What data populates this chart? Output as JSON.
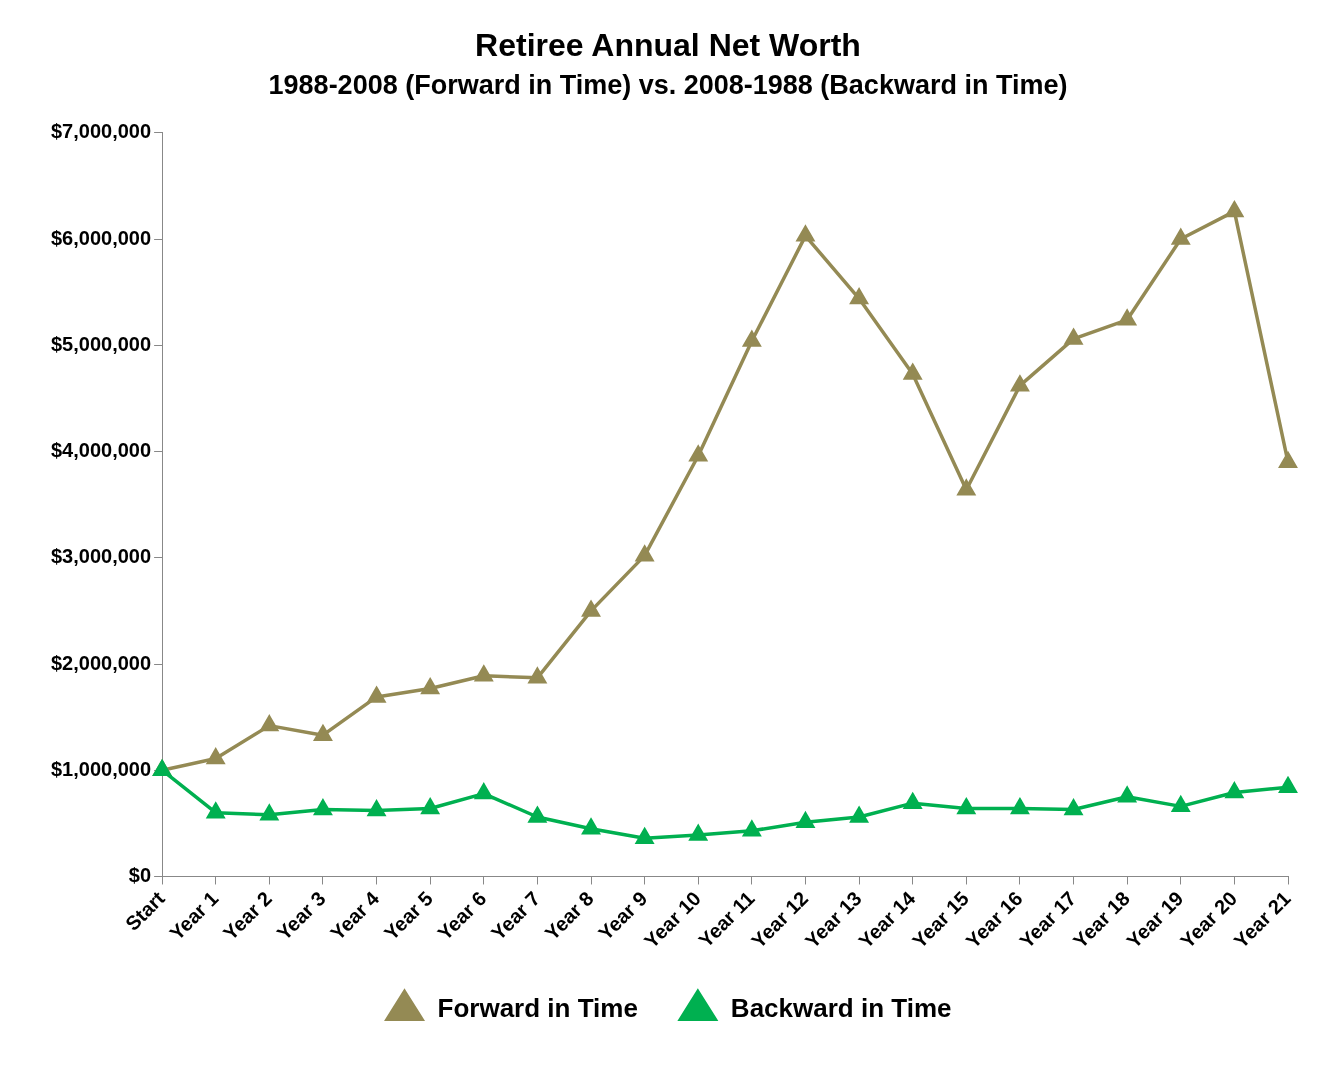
{
  "chart_data": {
    "type": "line",
    "title": "Retiree Annual Net Worth",
    "subtitle": "1988-2008 (Forward in Time) vs. 2008-1988 (Backward in Time)",
    "categories": [
      "Start",
      "Year 1",
      "Year 2",
      "Year 3",
      "Year 4",
      "Year 5",
      "Year 6",
      "Year 7",
      "Year 8",
      "Year 9",
      "Year 10",
      "Year 11",
      "Year 12",
      "Year 13",
      "Year 14",
      "Year 15",
      "Year 16",
      "Year 17",
      "Year 18",
      "Year 19",
      "Year 20",
      "Year 21"
    ],
    "series": [
      {
        "name": "Forward in Time",
        "color": "#948a54",
        "values": [
          1000000,
          1110000,
          1420000,
          1330000,
          1690000,
          1770000,
          1890000,
          1870000,
          2500000,
          3020000,
          3960000,
          5040000,
          6030000,
          5440000,
          4730000,
          3640000,
          4620000,
          5060000,
          5240000,
          6000000,
          6260000,
          3900000
        ]
      },
      {
        "name": "Backward in Time",
        "color": "#00b050",
        "values": [
          1000000,
          600000,
          580000,
          630000,
          620000,
          640000,
          780000,
          560000,
          450000,
          360000,
          390000,
          430000,
          510000,
          560000,
          690000,
          640000,
          640000,
          630000,
          750000,
          660000,
          790000,
          840000
        ]
      }
    ],
    "ylim": [
      0,
      7000000
    ],
    "yticks": [
      {
        "value": 0,
        "label": "$0"
      },
      {
        "value": 1000000,
        "label": "$1,000,000"
      },
      {
        "value": 2000000,
        "label": "$2,000,000"
      },
      {
        "value": 3000000,
        "label": "$3,000,000"
      },
      {
        "value": 4000000,
        "label": "$4,000,000"
      },
      {
        "value": 5000000,
        "label": "$5,000,000"
      },
      {
        "value": 6000000,
        "label": "$6,000,000"
      },
      {
        "value": 7000000,
        "label": "$7,000,000"
      }
    ],
    "grid": false,
    "legend": "bottom",
    "marker": "triangle",
    "line_style": "solid"
  }
}
